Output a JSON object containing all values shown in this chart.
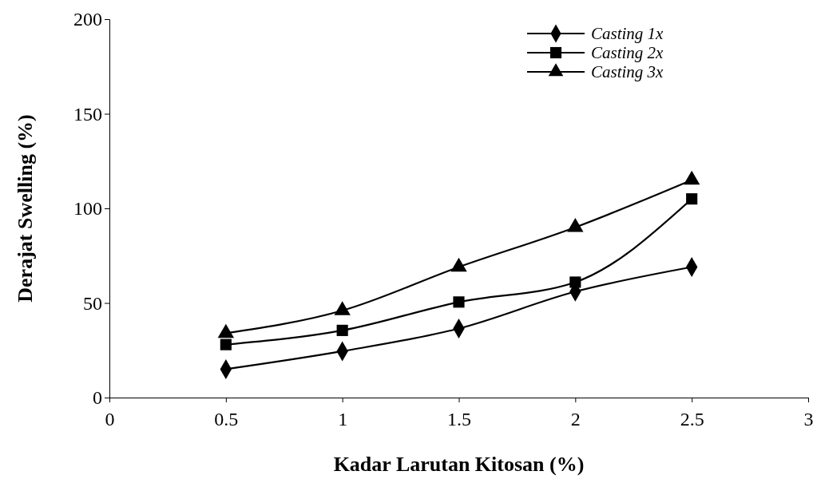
{
  "chart_data": {
    "type": "line",
    "xlabel": "Kadar Larutan Kitosan (%)",
    "ylabel": "Derajat Swelling (%)",
    "x": [
      0.5,
      1,
      1.5,
      2,
      2.5
    ],
    "series": [
      {
        "name": "Casting 1x",
        "color": "#000000",
        "marker": "diamond",
        "values": [
          15,
          24.5,
          36.5,
          56,
          69
        ]
      },
      {
        "name": "Casting 2x",
        "color": "#000000",
        "marker": "square",
        "values": [
          28,
          35.5,
          50.5,
          61,
          105
        ]
      },
      {
        "name": "Casting 3x",
        "color": "#000000",
        "marker": "triangle",
        "values": [
          34,
          46,
          69,
          90,
          115
        ]
      }
    ],
    "xlim": [
      0,
      3
    ],
    "xticks": [
      0,
      0.5,
      1,
      1.5,
      2,
      2.5,
      3
    ],
    "ylim": [
      0,
      200
    ],
    "yticks": [
      0,
      50,
      100,
      150,
      200
    ],
    "grid": false,
    "legend": "top right",
    "line_style": "solid"
  }
}
